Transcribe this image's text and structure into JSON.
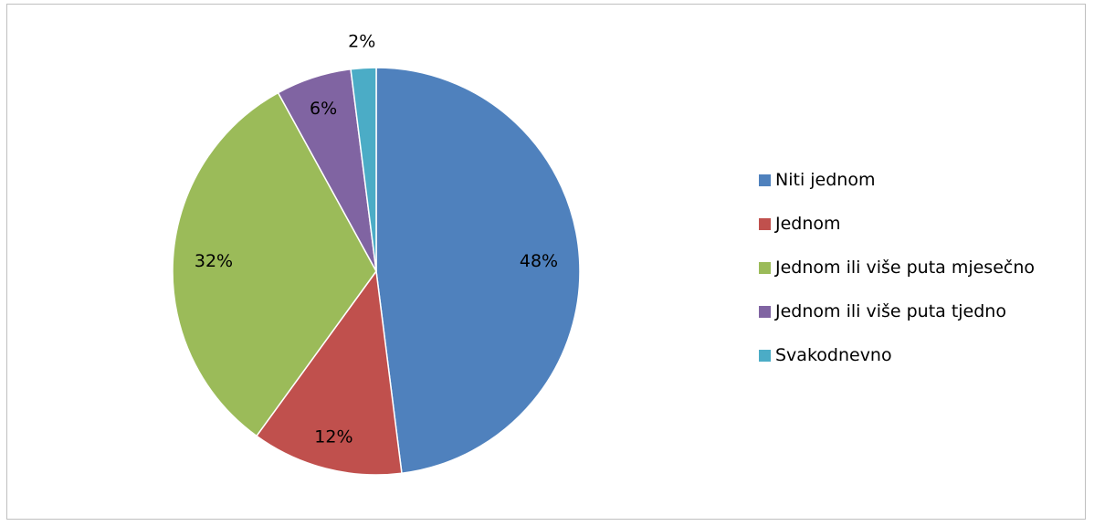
{
  "chart_data": {
    "type": "pie",
    "categories": [
      "Niti jednom",
      "Jednom",
      "Jednom ili više puta mjesečno",
      "Jednom ili više puta tjedno",
      "Svakodnevno"
    ],
    "values": [
      48,
      12,
      32,
      6,
      2
    ],
    "data_labels": [
      "48%",
      "12%",
      "32%",
      "6%",
      "2%"
    ],
    "colors": [
      "#4F81BD",
      "#C0504D",
      "#9BBB59",
      "#8064A2",
      "#4BACC6"
    ],
    "start_angle": "top (12 o'clock)",
    "direction": "clockwise",
    "legend_position": "right"
  }
}
